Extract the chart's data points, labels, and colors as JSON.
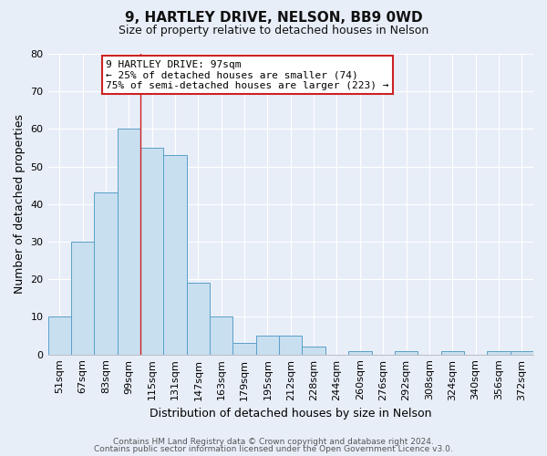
{
  "title": "9, HARTLEY DRIVE, NELSON, BB9 0WD",
  "subtitle": "Size of property relative to detached houses in Nelson",
  "xlabel": "Distribution of detached houses by size in Nelson",
  "ylabel": "Number of detached properties",
  "bar_labels": [
    "51sqm",
    "67sqm",
    "83sqm",
    "99sqm",
    "115sqm",
    "131sqm",
    "147sqm",
    "163sqm",
    "179sqm",
    "195sqm",
    "212sqm",
    "228sqm",
    "244sqm",
    "260sqm",
    "276sqm",
    "292sqm",
    "308sqm",
    "324sqm",
    "340sqm",
    "356sqm",
    "372sqm"
  ],
  "bar_values": [
    10,
    30,
    43,
    60,
    55,
    53,
    19,
    10,
    3,
    5,
    5,
    2,
    0,
    1,
    0,
    1,
    0,
    1,
    0,
    1,
    1
  ],
  "bar_color": "#c8dff0",
  "bar_edge_color": "#5a9fc8",
  "ylim": [
    0,
    80
  ],
  "yticks": [
    0,
    10,
    20,
    30,
    40,
    50,
    60,
    70,
    80
  ],
  "annotation_line1": "9 HARTLEY DRIVE: 97sqm",
  "annotation_line2": "← 25% of detached houses are smaller (74)",
  "annotation_line3": "75% of semi-detached houses are larger (223) →",
  "vline_x_index": 3.5,
  "footnote_line1": "Contains HM Land Registry data © Crown copyright and database right 2024.",
  "footnote_line2": "Contains public sector information licensed under the Open Government Licence v3.0.",
  "background_color": "#e8eef8",
  "grid_color": "#ffffff",
  "title_fontsize": 11,
  "subtitle_fontsize": 9,
  "ylabel_fontsize": 9,
  "xlabel_fontsize": 9,
  "tick_fontsize": 8,
  "annotation_fontsize": 8,
  "footnote_fontsize": 6.5
}
